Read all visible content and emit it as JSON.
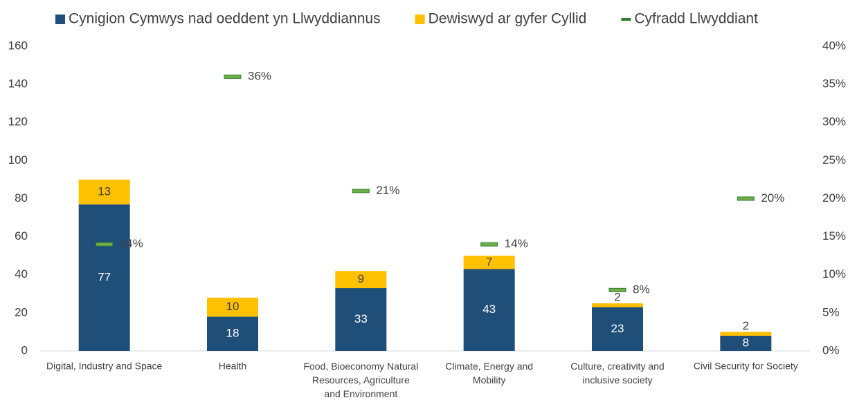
{
  "chart_data": {
    "type": "bar",
    "stacked": true,
    "categories": [
      "Digital, Industry and Space",
      "Health",
      "Food, Bioeconomy Natural\nResources, Agriculture\nand Environment",
      "Climate, Energy and\nMobility",
      "Culture, creativity and\ninclusive society",
      "Civil Security for Society"
    ],
    "series": [
      {
        "name": "Cynigion Cymwys nad oeddent yn Llwyddiannus",
        "color": "#1f4e79",
        "values": [
          77,
          18,
          33,
          43,
          23,
          8
        ]
      },
      {
        "name": "Dewiswyd ar gyfer Cyllid",
        "color": "#ffc000",
        "values": [
          13,
          10,
          9,
          7,
          2,
          2
        ]
      },
      {
        "name": "Cyfradd Llwyddiant",
        "color": "#2e7d32",
        "type": "marker",
        "axis": "y2",
        "values": [
          14,
          36,
          21,
          14,
          8,
          20
        ],
        "value_labels": [
          "14%",
          "36%",
          "21%",
          "14%",
          "8%",
          "20%"
        ]
      }
    ],
    "ylim": [
      0,
      160
    ],
    "yticks": [
      0,
      20,
      40,
      60,
      80,
      100,
      120,
      140,
      160
    ],
    "y2lim": [
      0,
      40
    ],
    "y2ticks": [
      {
        "value": 0,
        "label": "0%"
      },
      {
        "value": 5,
        "label": "5%"
      },
      {
        "value": 10,
        "label": "10%"
      },
      {
        "value": 15,
        "label": "15%"
      },
      {
        "value": 20,
        "label": "20%"
      },
      {
        "value": 25,
        "label": "25%"
      },
      {
        "value": 30,
        "label": "30%"
      },
      {
        "value": 35,
        "label": "35%"
      },
      {
        "value": 40,
        "label": "40%"
      }
    ],
    "legend": "top"
  }
}
